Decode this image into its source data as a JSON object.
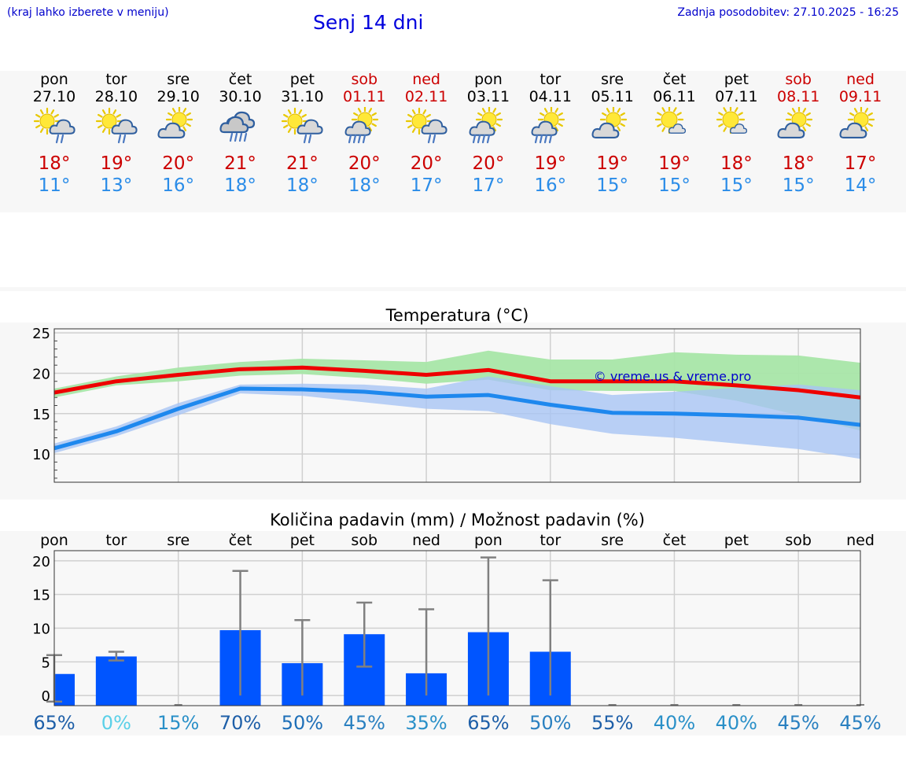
{
  "header": {
    "menu_hint": "(kraj lahko izberete v meniju)",
    "title": "Senj 14 dni",
    "last_update": "Zadnja posodobitev: 27.10.2025 - 16:25"
  },
  "colors": {
    "max": "#ee0000",
    "min": "#1e88ee",
    "max_band": "#a8e6a8",
    "min_band": "#a8c4f4",
    "bars": "#0055ff",
    "error": "#808080"
  },
  "days": [
    {
      "name": "pon",
      "date": "27.10",
      "weekend": false,
      "icon": "sun-cloud-rain-icon",
      "tmax": "18°",
      "tmin": "11°"
    },
    {
      "name": "tor",
      "date": "28.10",
      "weekend": false,
      "icon": "sun-cloud-rain-icon",
      "tmax": "19°",
      "tmin": "13°"
    },
    {
      "name": "sre",
      "date": "29.10",
      "weekend": false,
      "icon": "sun-cloud-icon",
      "tmax": "20°",
      "tmin": "16°"
    },
    {
      "name": "čet",
      "date": "30.10",
      "weekend": false,
      "icon": "cloud-heavy-rain-icon",
      "tmax": "21°",
      "tmin": "18°"
    },
    {
      "name": "pet",
      "date": "31.10",
      "weekend": false,
      "icon": "sun-cloud-rain-icon",
      "tmax": "21°",
      "tmin": "18°"
    },
    {
      "name": "sob",
      "date": "01.11",
      "weekend": true,
      "icon": "sun-cloud-heavy-rain-icon",
      "tmax": "20°",
      "tmin": "18°"
    },
    {
      "name": "ned",
      "date": "02.11",
      "weekend": true,
      "icon": "sun-cloud-rain-icon",
      "tmax": "20°",
      "tmin": "17°"
    },
    {
      "name": "pon",
      "date": "03.11",
      "weekend": false,
      "icon": "sun-cloud-heavy-rain-icon",
      "tmax": "20°",
      "tmin": "17°"
    },
    {
      "name": "tor",
      "date": "04.11",
      "weekend": false,
      "icon": "sun-cloud-heavy-rain-icon",
      "tmax": "19°",
      "tmin": "16°"
    },
    {
      "name": "sre",
      "date": "05.11",
      "weekend": false,
      "icon": "sun-cloud-icon",
      "tmax": "19°",
      "tmin": "15°"
    },
    {
      "name": "čet",
      "date": "06.11",
      "weekend": false,
      "icon": "sun-small-cloud-icon",
      "tmax": "19°",
      "tmin": "15°"
    },
    {
      "name": "pet",
      "date": "07.11",
      "weekend": false,
      "icon": "sun-small-cloud-icon",
      "tmax": "18°",
      "tmin": "15°"
    },
    {
      "name": "sob",
      "date": "08.11",
      "weekend": true,
      "icon": "sun-cloud-icon",
      "tmax": "18°",
      "tmin": "15°"
    },
    {
      "name": "ned",
      "date": "09.11",
      "weekend": true,
      "icon": "sun-cloud-icon",
      "tmax": "17°",
      "tmin": "14°"
    }
  ],
  "chart_data": [
    {
      "type": "line",
      "title": "Temperatura (°C)",
      "watermark": "© vreme.us & vreme.pro",
      "x": [
        0,
        1,
        2,
        3,
        4,
        5,
        6,
        7,
        8,
        9,
        10,
        11,
        12,
        13
      ],
      "ylim": [
        6.5,
        25.5
      ],
      "yticks": [
        10,
        15,
        20,
        25
      ],
      "grid": true,
      "series": [
        {
          "values": [
            17.6,
            19.0,
            19.8,
            20.5,
            20.7,
            20.3,
            19.8,
            20.4,
            19.0,
            19.0,
            19.0,
            18.5,
            17.9,
            17.0
          ],
          "band_low": [
            17.0,
            18.5,
            19.0,
            19.7,
            19.9,
            19.4,
            18.7,
            19.2,
            17.9,
            17.8,
            17.8,
            16.6,
            14.8,
            12.9
          ],
          "band_high": [
            18.1,
            19.6,
            20.7,
            21.4,
            21.8,
            21.6,
            21.4,
            22.8,
            21.7,
            21.7,
            22.6,
            22.3,
            22.2,
            21.3
          ]
        },
        {
          "values": [
            10.7,
            12.8,
            15.6,
            18.1,
            18.0,
            17.7,
            17.1,
            17.3,
            16.1,
            15.1,
            15.0,
            14.8,
            14.5,
            13.6
          ],
          "band_low": [
            10.1,
            12.2,
            14.8,
            17.5,
            17.2,
            16.4,
            15.6,
            15.3,
            13.7,
            12.5,
            12.0,
            11.3,
            10.6,
            9.4
          ],
          "band_high": [
            11.3,
            13.4,
            16.3,
            18.6,
            18.7,
            18.6,
            18.1,
            19.6,
            18.4,
            17.3,
            17.7,
            18.2,
            18.6,
            17.9
          ]
        }
      ]
    },
    {
      "type": "bar",
      "title": "Količina padavin (mm) / Možnost padavin (%)",
      "categories": [
        "pon",
        "tor",
        "sre",
        "čet",
        "pet",
        "sob",
        "ned",
        "pon",
        "tor",
        "sre",
        "čet",
        "pet",
        "sob",
        "ned"
      ],
      "ylim": [
        -1.5,
        21.5
      ],
      "yticks": [
        0,
        5,
        10,
        15,
        20
      ],
      "grid": true,
      "values": [
        3.2,
        5.8,
        0,
        9.7,
        4.8,
        9.1,
        3.3,
        9.4,
        6.5,
        0,
        0,
        0,
        0,
        0
      ],
      "error_low": [
        -0.9,
        5.2,
        0,
        0,
        0,
        4.3,
        0,
        0,
        0,
        0,
        0,
        0,
        0,
        0
      ],
      "error_high": [
        6.0,
        6.5,
        0,
        18.5,
        11.2,
        13.8,
        12.8,
        20.5,
        17.1,
        0,
        0,
        0,
        0,
        0
      ],
      "probabilities": [
        "65%",
        "0%",
        "15%",
        "70%",
        "50%",
        "45%",
        "35%",
        "65%",
        "50%",
        "55%",
        "40%",
        "40%",
        "45%",
        "45%"
      ],
      "probability_colors": [
        "#1e5fa8",
        "#5ad0e8",
        "#2a90c8",
        "#1e5fa8",
        "#1e6fb8",
        "#2a80c0",
        "#2a90c8",
        "#1e5fa8",
        "#2a80c0",
        "#1e5fa8",
        "#2a90c8",
        "#2a90c8",
        "#2a80c0",
        "#2a80c0"
      ]
    }
  ]
}
